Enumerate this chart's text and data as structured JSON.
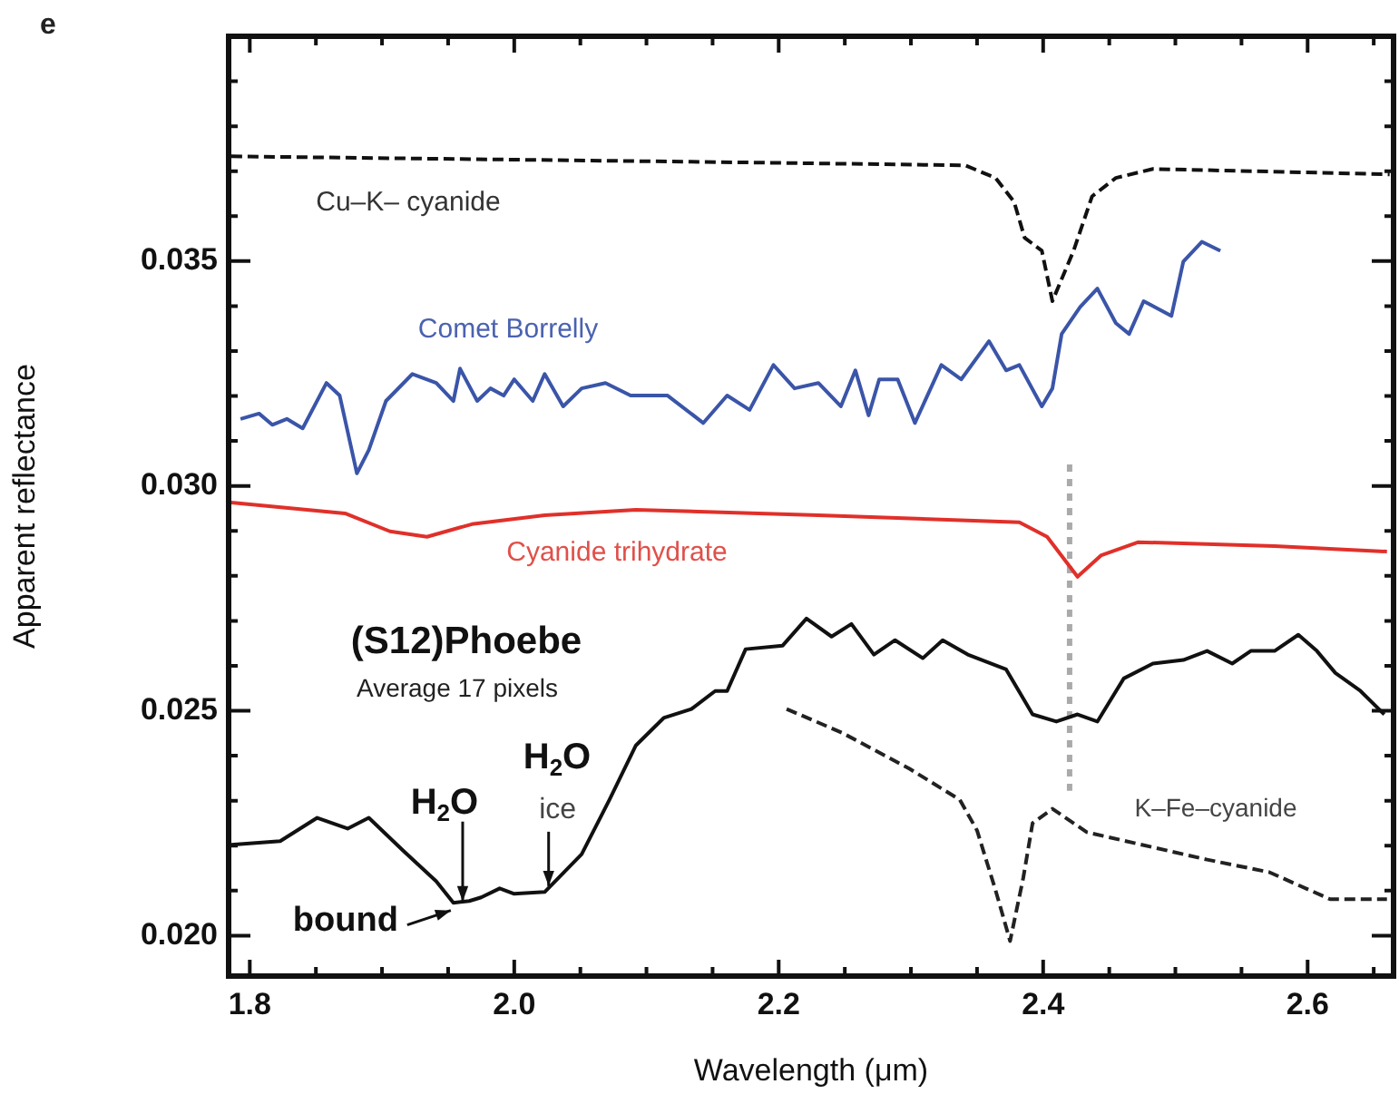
{
  "chart_data": {
    "type": "line",
    "title": "e",
    "xlabel": "Wavelength (μm)",
    "ylabel": "Apparent reflectance",
    "xlim": [
      1.784,
      2.665
    ],
    "ylim": [
      0.0191,
      0.04
    ],
    "xticks": [
      {
        "value": 1.8,
        "label": "1.8"
      },
      {
        "value": 1.85,
        "label": null
      },
      {
        "value": 1.9,
        "label": null
      },
      {
        "value": 1.95,
        "label": null
      },
      {
        "value": 2.0,
        "label": "2.0"
      },
      {
        "value": 2.05,
        "label": null
      },
      {
        "value": 2.1,
        "label": null
      },
      {
        "value": 2.15,
        "label": null
      },
      {
        "value": 2.2,
        "label": "2.2"
      },
      {
        "value": 2.25,
        "label": null
      },
      {
        "value": 2.3,
        "label": null
      },
      {
        "value": 2.35,
        "label": null
      },
      {
        "value": 2.4,
        "label": "2.4"
      },
      {
        "value": 2.45,
        "label": null
      },
      {
        "value": 2.5,
        "label": null
      },
      {
        "value": 2.55,
        "label": null
      },
      {
        "value": 2.6,
        "label": "2.6"
      },
      {
        "value": 2.65,
        "label": null
      }
    ],
    "yticks": [
      {
        "value": 0.02,
        "label": "0.020"
      },
      {
        "value": 0.021,
        "label": null
      },
      {
        "value": 0.022,
        "label": null
      },
      {
        "value": 0.023,
        "label": null
      },
      {
        "value": 0.024,
        "label": null
      },
      {
        "value": 0.025,
        "label": "0.025"
      },
      {
        "value": 0.026,
        "label": null
      },
      {
        "value": 0.027,
        "label": null
      },
      {
        "value": 0.028,
        "label": null
      },
      {
        "value": 0.029,
        "label": null
      },
      {
        "value": 0.03,
        "label": "0.030"
      },
      {
        "value": 0.031,
        "label": null
      },
      {
        "value": 0.032,
        "label": null
      },
      {
        "value": 0.033,
        "label": null
      },
      {
        "value": 0.034,
        "label": null
      },
      {
        "value": 0.035,
        "label": "0.035"
      },
      {
        "value": 0.036,
        "label": null
      },
      {
        "value": 0.037,
        "label": null
      },
      {
        "value": 0.038,
        "label": null
      },
      {
        "value": 0.039,
        "label": null
      }
    ],
    "grid": false,
    "legend": false,
    "marker": "none",
    "series": [
      {
        "color": "#111111",
        "line_style": "dashed",
        "x": [
          1.786,
          2.134,
          2.341,
          2.364,
          2.378,
          2.386,
          2.399,
          2.407,
          2.423,
          2.437,
          2.455,
          2.483,
          2.662
        ],
        "values": [
          0.03733,
          0.03721,
          0.03713,
          0.03685,
          0.03632,
          0.03552,
          0.03523,
          0.03411,
          0.03523,
          0.03644,
          0.03685,
          0.03705,
          0.03693
        ]
      },
      {
        "color": "#3a55a8",
        "line_style": "solid",
        "x": [
          1.793,
          1.807,
          1.817,
          1.828,
          1.84,
          1.858,
          1.868,
          1.881,
          1.89,
          1.903,
          1.923,
          1.941,
          1.954,
          1.959,
          1.972,
          1.982,
          1.992,
          2.0,
          2.014,
          2.023,
          2.037,
          2.051,
          2.069,
          2.088,
          2.116,
          2.143,
          2.161,
          2.178,
          2.196,
          2.212,
          2.23,
          2.247,
          2.258,
          2.268,
          2.276,
          2.29,
          2.303,
          2.323,
          2.338,
          2.359,
          2.372,
          2.382,
          2.399,
          2.407,
          2.414,
          2.428,
          2.441,
          2.455,
          2.465,
          2.476,
          2.497,
          2.506,
          2.52,
          2.534
        ],
        "values": [
          0.03149,
          0.03161,
          0.03136,
          0.03149,
          0.03128,
          0.03229,
          0.03201,
          0.03028,
          0.0308,
          0.03189,
          0.03249,
          0.03229,
          0.03189,
          0.03261,
          0.03189,
          0.03217,
          0.03201,
          0.03237,
          0.03189,
          0.03249,
          0.03177,
          0.03217,
          0.03229,
          0.03201,
          0.03201,
          0.0314,
          0.03201,
          0.03169,
          0.03269,
          0.03217,
          0.03229,
          0.03177,
          0.03257,
          0.03157,
          0.03237,
          0.03237,
          0.0314,
          0.03269,
          0.03237,
          0.03322,
          0.03257,
          0.03269,
          0.03177,
          0.03217,
          0.03338,
          0.03398,
          0.03439,
          0.03362,
          0.03338,
          0.03411,
          0.03378,
          0.03499,
          0.03543,
          0.03523
        ]
      },
      {
        "color": "#e0302a",
        "line_style": "solid",
        "x": [
          1.786,
          1.872,
          1.906,
          1.934,
          1.968,
          2.023,
          2.092,
          2.23,
          2.382,
          2.403,
          2.426,
          2.444,
          2.472,
          2.575,
          2.66
        ],
        "values": [
          0.02963,
          0.02939,
          0.02899,
          0.02887,
          0.02915,
          0.02935,
          0.02947,
          0.02935,
          0.02919,
          0.02887,
          0.02798,
          0.02846,
          0.02875,
          0.02866,
          0.02854
        ]
      },
      {
        "color": "#111111",
        "line_style": "solid",
        "x": [
          1.786,
          1.823,
          1.851,
          1.874,
          1.89,
          1.916,
          1.941,
          1.954,
          1.966,
          1.975,
          1.989,
          2.0,
          2.023,
          2.051,
          2.072,
          2.092,
          2.113,
          2.134,
          2.152,
          2.161,
          2.175,
          2.203,
          2.221,
          2.24,
          2.255,
          2.272,
          2.288,
          2.309,
          2.324,
          2.343,
          2.372,
          2.392,
          2.41,
          2.426,
          2.441,
          2.461,
          2.483,
          2.506,
          2.524,
          2.543,
          2.557,
          2.575,
          2.593,
          2.607,
          2.621,
          2.64,
          2.658
        ],
        "values": [
          0.02202,
          0.0221,
          0.02262,
          0.02238,
          0.02262,
          0.02189,
          0.02121,
          0.02073,
          0.02077,
          0.02085,
          0.02105,
          0.02093,
          0.02097,
          0.02181,
          0.02302,
          0.02423,
          0.02484,
          0.02504,
          0.02544,
          0.02544,
          0.02637,
          0.02645,
          0.02705,
          0.02665,
          0.02693,
          0.02625,
          0.02657,
          0.02617,
          0.02657,
          0.02625,
          0.02592,
          0.02492,
          0.02476,
          0.02492,
          0.02476,
          0.02572,
          0.02605,
          0.02613,
          0.02633,
          0.02605,
          0.02633,
          0.02633,
          0.02669,
          0.02633,
          0.02584,
          0.02544,
          0.02492
        ]
      },
      {
        "color": "#222222",
        "line_style": "dashed",
        "x": [
          2.206,
          2.248,
          2.299,
          2.337,
          2.35,
          2.364,
          2.375,
          2.385,
          2.392,
          2.407,
          2.433,
          2.524,
          2.571,
          2.617,
          2.66
        ],
        "values": [
          0.02504,
          0.02451,
          0.02371,
          0.02302,
          0.02234,
          0.02101,
          0.01988,
          0.02129,
          0.0225,
          0.02282,
          0.0223,
          0.02169,
          0.02141,
          0.02081,
          0.02081
        ]
      },
      {
        "color": "#aaaaaa",
        "line_style": "dotted",
        "x": [
          2.42,
          2.42
        ],
        "values": [
          0.03048,
          0.02322
        ]
      }
    ],
    "annotations": [
      "Cu–K– cyanide",
      "Comet Borrelly",
      "Cyanide trihydrate",
      "(S12)Phoebe",
      "Average 17 pixels",
      {
        "text": "H$_{2}$O",
        "x": 1.961,
        "y": 0.02076
      },
      "H$_{2}$O",
      {
        "text": "ice",
        "x": 2.026,
        "y": 0.0211
      },
      {
        "text": "bound",
        "x": 1.952,
        "y": 0.02056
      },
      "K–Fe–cyanide"
    ]
  }
}
